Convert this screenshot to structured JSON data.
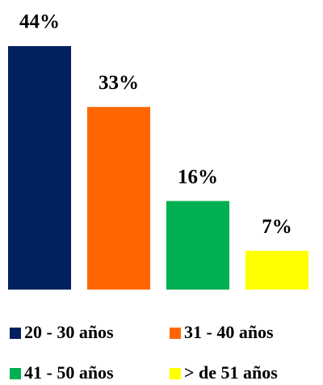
{
  "chart_data": {
    "type": "bar",
    "categories": [
      "20 - 30 años",
      "31 - 40 años",
      "41 - 50 años",
      "> de 51 años"
    ],
    "values": [
      44,
      33,
      16,
      7
    ],
    "value_labels": [
      "44%",
      "33%",
      "16%",
      "7%"
    ],
    "colors": [
      "#002060",
      "#ff6600",
      "#00b050",
      "#ffff00"
    ],
    "legend": "bottom"
  }
}
